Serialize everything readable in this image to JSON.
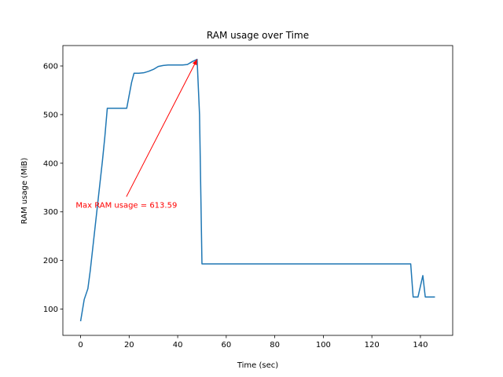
{
  "chart_data": {
    "type": "line",
    "title": "RAM usage over Time",
    "xlabel": "Time (sec)",
    "ylabel": "RAM usage (MiB)",
    "xlim": [
      -7.3,
      153.3
    ],
    "ylim": [
      46,
      642
    ],
    "x_ticks": [
      0,
      20,
      40,
      60,
      80,
      100,
      120,
      140
    ],
    "y_ticks": [
      100,
      200,
      300,
      400,
      500,
      600
    ],
    "grid": false,
    "line_color": "#1f77b4",
    "series": [
      {
        "x": [
          0,
          1.5,
          3,
          4,
          5,
          6,
          7,
          8,
          9,
          10,
          11,
          12,
          13,
          15,
          17,
          19,
          21,
          22,
          24,
          26,
          28,
          30,
          32,
          34,
          36,
          38,
          40,
          42,
          44,
          46,
          48,
          49,
          50,
          60,
          80,
          100,
          120,
          136,
          137,
          139,
          141,
          142,
          144,
          146
        ],
        "y": [
          75,
          120,
          142,
          180,
          225,
          270,
          315,
          360,
          405,
          455,
          513,
          513,
          513,
          513,
          513,
          513,
          566,
          585,
          585,
          586,
          589,
          593,
          599,
          601,
          602,
          602,
          602,
          602,
          603,
          609,
          613.59,
          500,
          193,
          193,
          193,
          193,
          193,
          193,
          125,
          125,
          169,
          125,
          125,
          125
        ]
      }
    ],
    "annotation": {
      "text": "Max RAM usage = 613.59",
      "color": "#ff0000",
      "point": [
        48,
        613.59
      ],
      "text_position": [
        -2,
        315
      ]
    }
  }
}
